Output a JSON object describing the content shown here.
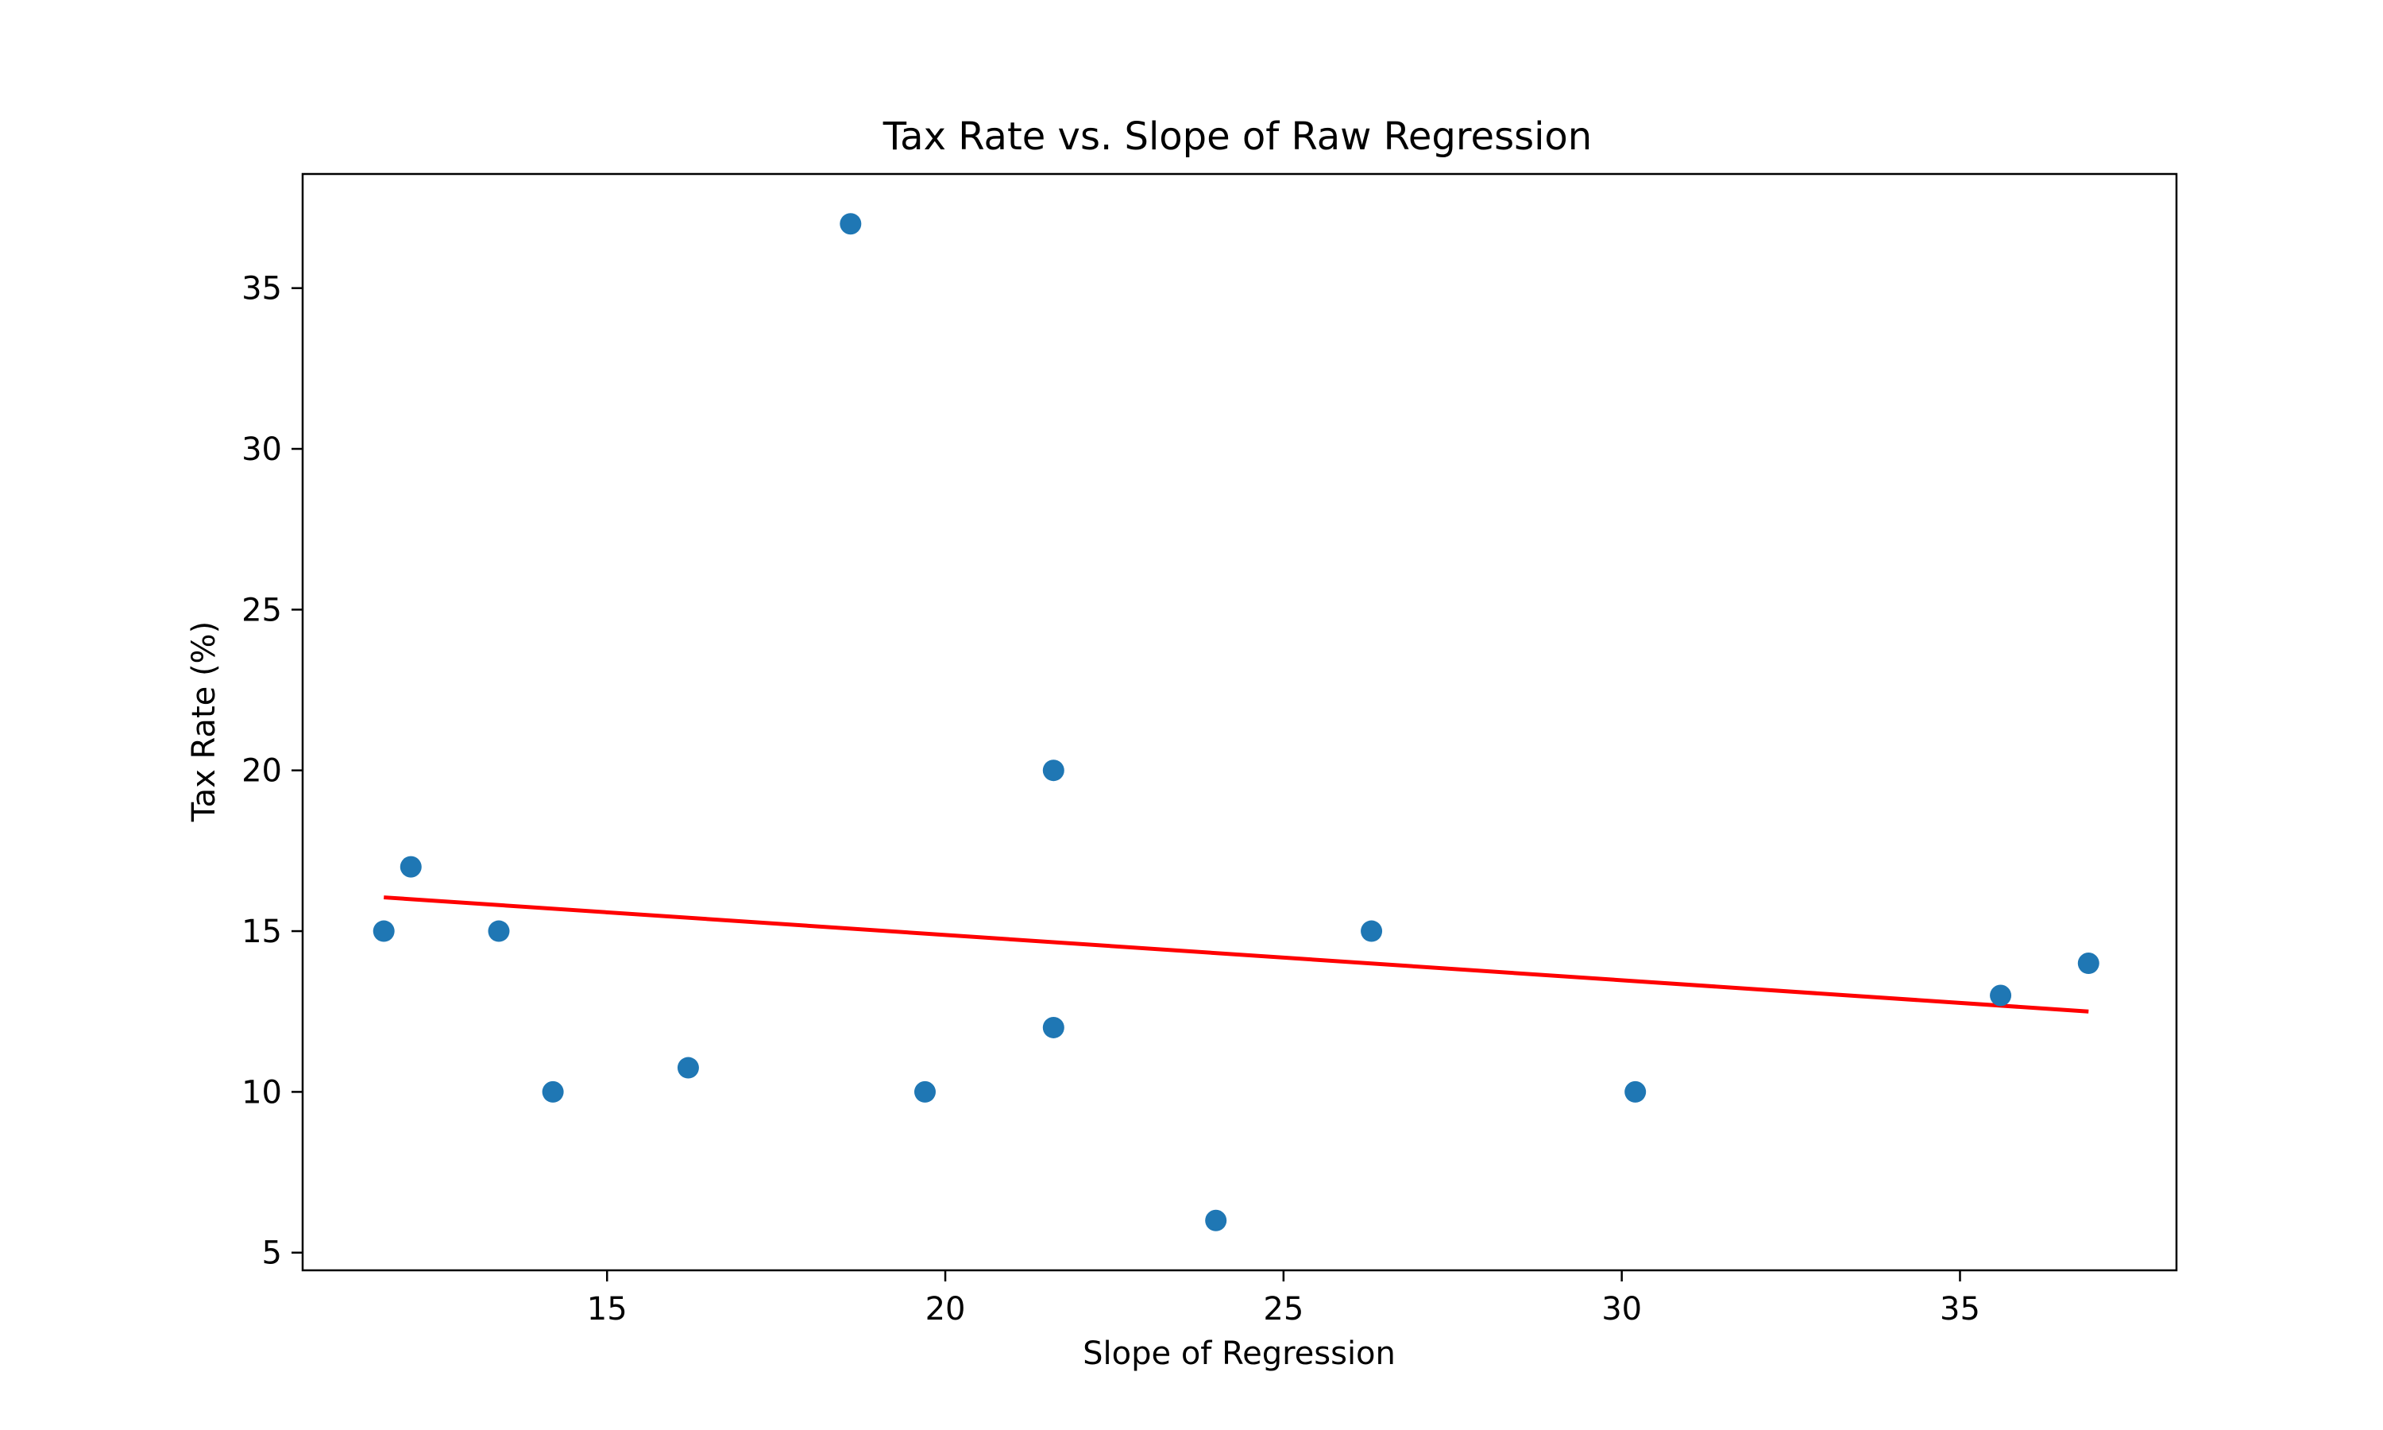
{
  "chart_data": {
    "type": "scatter",
    "title": "Tax Rate vs. Slope of Raw Regression",
    "xlabel": "Slope of Regression",
    "ylabel": "Tax Rate (%)",
    "xlim": [
      10.5,
      38.2
    ],
    "ylim": [
      4.45,
      38.55
    ],
    "xticks": [
      15,
      20,
      25,
      30,
      35
    ],
    "yticks": [
      5,
      10,
      15,
      20,
      25,
      30,
      35
    ],
    "grid": false,
    "points": [
      {
        "x": 11.7,
        "y": 15
      },
      {
        "x": 12.1,
        "y": 17
      },
      {
        "x": 13.4,
        "y": 15
      },
      {
        "x": 14.2,
        "y": 10
      },
      {
        "x": 16.2,
        "y": 10.75
      },
      {
        "x": 18.6,
        "y": 37
      },
      {
        "x": 19.7,
        "y": 10
      },
      {
        "x": 21.6,
        "y": 20
      },
      {
        "x": 21.6,
        "y": 12
      },
      {
        "x": 24.0,
        "y": 6
      },
      {
        "x": 26.3,
        "y": 15
      },
      {
        "x": 30.2,
        "y": 10
      },
      {
        "x": 35.6,
        "y": 13
      },
      {
        "x": 36.9,
        "y": 14
      }
    ],
    "trendline": {
      "x": [
        11.7,
        36.9
      ],
      "y": [
        16.05,
        12.5
      ]
    },
    "colors": {
      "points": "#1f77b4",
      "trendline": "#ff0000",
      "axes": "#000000"
    }
  }
}
